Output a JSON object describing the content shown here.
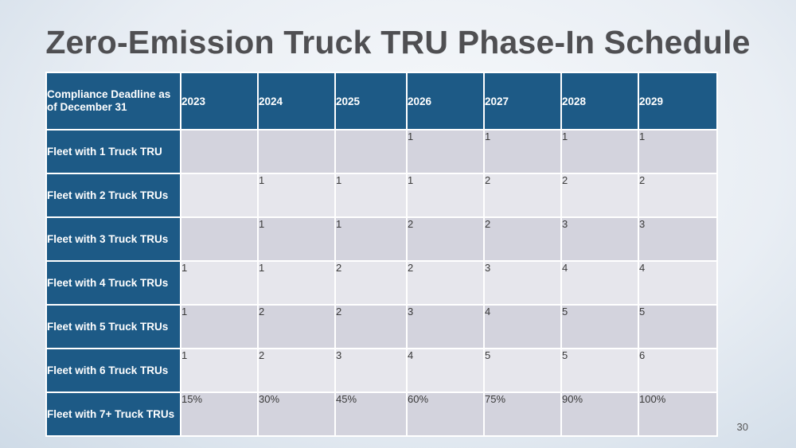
{
  "title": "Zero-Emission Truck TRU Phase-In Schedule",
  "page_number": "30",
  "table": {
    "corner_header": "Compliance Deadline as of December 31",
    "years": [
      "2023",
      "2024",
      "2025",
      "2026",
      "2027",
      "2028",
      "2029"
    ],
    "rows": [
      {
        "label": "Fleet with 1 Truck TRU",
        "cells": [
          "",
          "",
          "",
          "1",
          "1",
          "1",
          "1"
        ]
      },
      {
        "label": "Fleet with 2 Truck TRUs",
        "cells": [
          "",
          "1",
          "1",
          "1",
          "2",
          "2",
          "2"
        ]
      },
      {
        "label": "Fleet with 3 Truck TRUs",
        "cells": [
          "",
          "1",
          "1",
          "2",
          "2",
          "3",
          "3"
        ]
      },
      {
        "label": "Fleet with 4 Truck TRUs",
        "cells": [
          "1",
          "1",
          "2",
          "2",
          "3",
          "4",
          "4"
        ]
      },
      {
        "label": "Fleet with 5 Truck TRUs",
        "cells": [
          "1",
          "2",
          "2",
          "3",
          "4",
          "5",
          "5"
        ]
      },
      {
        "label": "Fleet with 6 Truck TRUs",
        "cells": [
          "1",
          "2",
          "3",
          "4",
          "5",
          "5",
          "6"
        ]
      },
      {
        "label": "Fleet with 7+ Truck TRUs",
        "cells": [
          "15%",
          "30%",
          "45%",
          "60%",
          "75%",
          "90%",
          "100%"
        ]
      }
    ]
  },
  "colors": {
    "header_blue": "#1d5a86",
    "cell_dark": "#d3d3dd",
    "cell_light": "#e6e6ec",
    "title_gray": "#4f4f52"
  }
}
